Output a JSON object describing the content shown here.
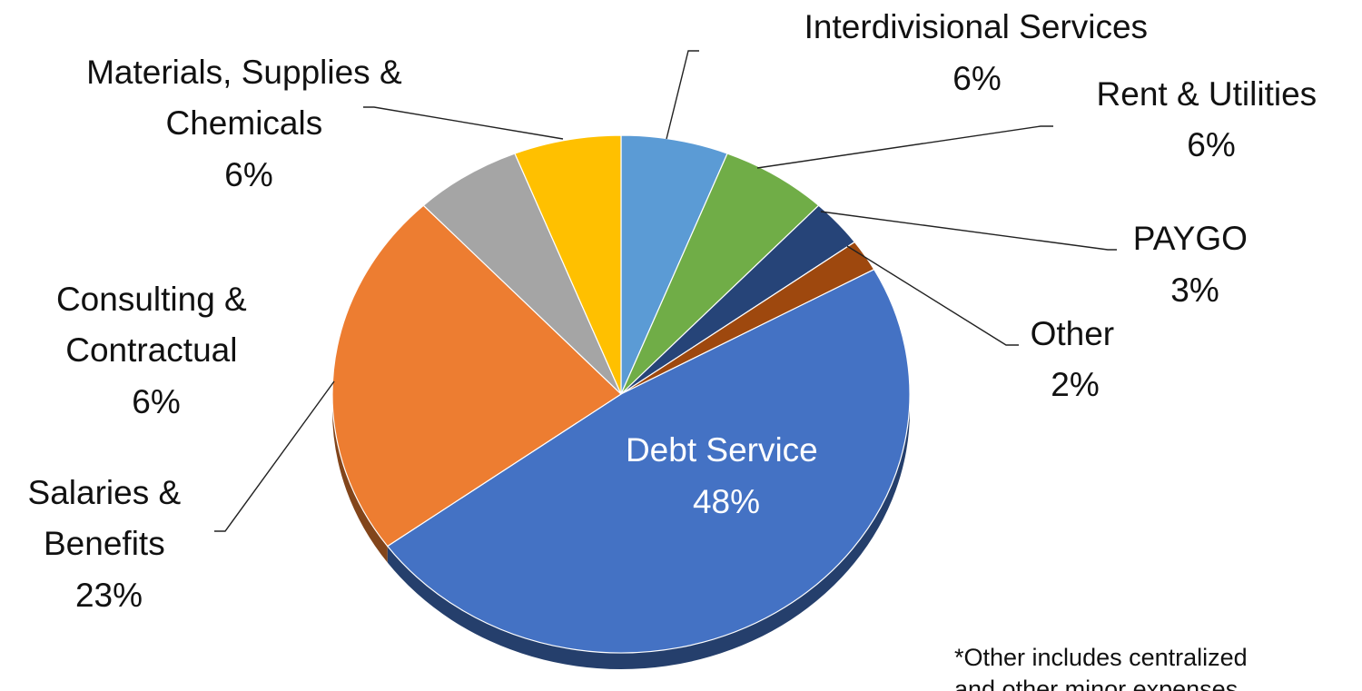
{
  "chart_data": {
    "type": "pie",
    "style": "3d",
    "start_angle_deg": 0,
    "direction": "clockwise",
    "slices": [
      {
        "name": "Interdivisional Services",
        "value": 6,
        "label": "6%",
        "color": "#5B9BD5"
      },
      {
        "name": "Rent & Utilities",
        "value": 6,
        "label": "6%",
        "color": "#70AD47"
      },
      {
        "name": "PAYGO",
        "value": 3,
        "label": "3%",
        "color": "#264478"
      },
      {
        "name": "Other",
        "value": 2,
        "label": "2%",
        "color": "#9E480E"
      },
      {
        "name": "Debt Service",
        "value": 48,
        "label": "48%",
        "color": "#4472C4"
      },
      {
        "name": "Salaries & Benefits",
        "value": 23,
        "label": "23%",
        "color": "#ED7D31"
      },
      {
        "name": "Consulting & Contractual",
        "value": 6,
        "label": "6%",
        "color": "#A5A5A5"
      },
      {
        "name": "Materials, Supplies & Chemicals",
        "value": 6,
        "label": "6%",
        "color": "#FFC000"
      }
    ],
    "labels": {
      "interdivisional": [
        "Interdivisional Services",
        "6%"
      ],
      "rent": [
        "Rent & Utilities",
        "6%"
      ],
      "paygo": [
        "PAYGO",
        "3%"
      ],
      "other": [
        "Other",
        "2%"
      ],
      "debt": [
        "Debt Service",
        "48%"
      ],
      "salaries": [
        "Salaries &",
        "Benefits",
        "23%"
      ],
      "consulting": [
        "Consulting &",
        "Contractual",
        "6%"
      ],
      "materials": [
        "Materials, Supplies &",
        "Chemicals",
        "6%"
      ]
    },
    "footnote": [
      "*Other includes centralized",
      "and other minor expenses"
    ]
  }
}
